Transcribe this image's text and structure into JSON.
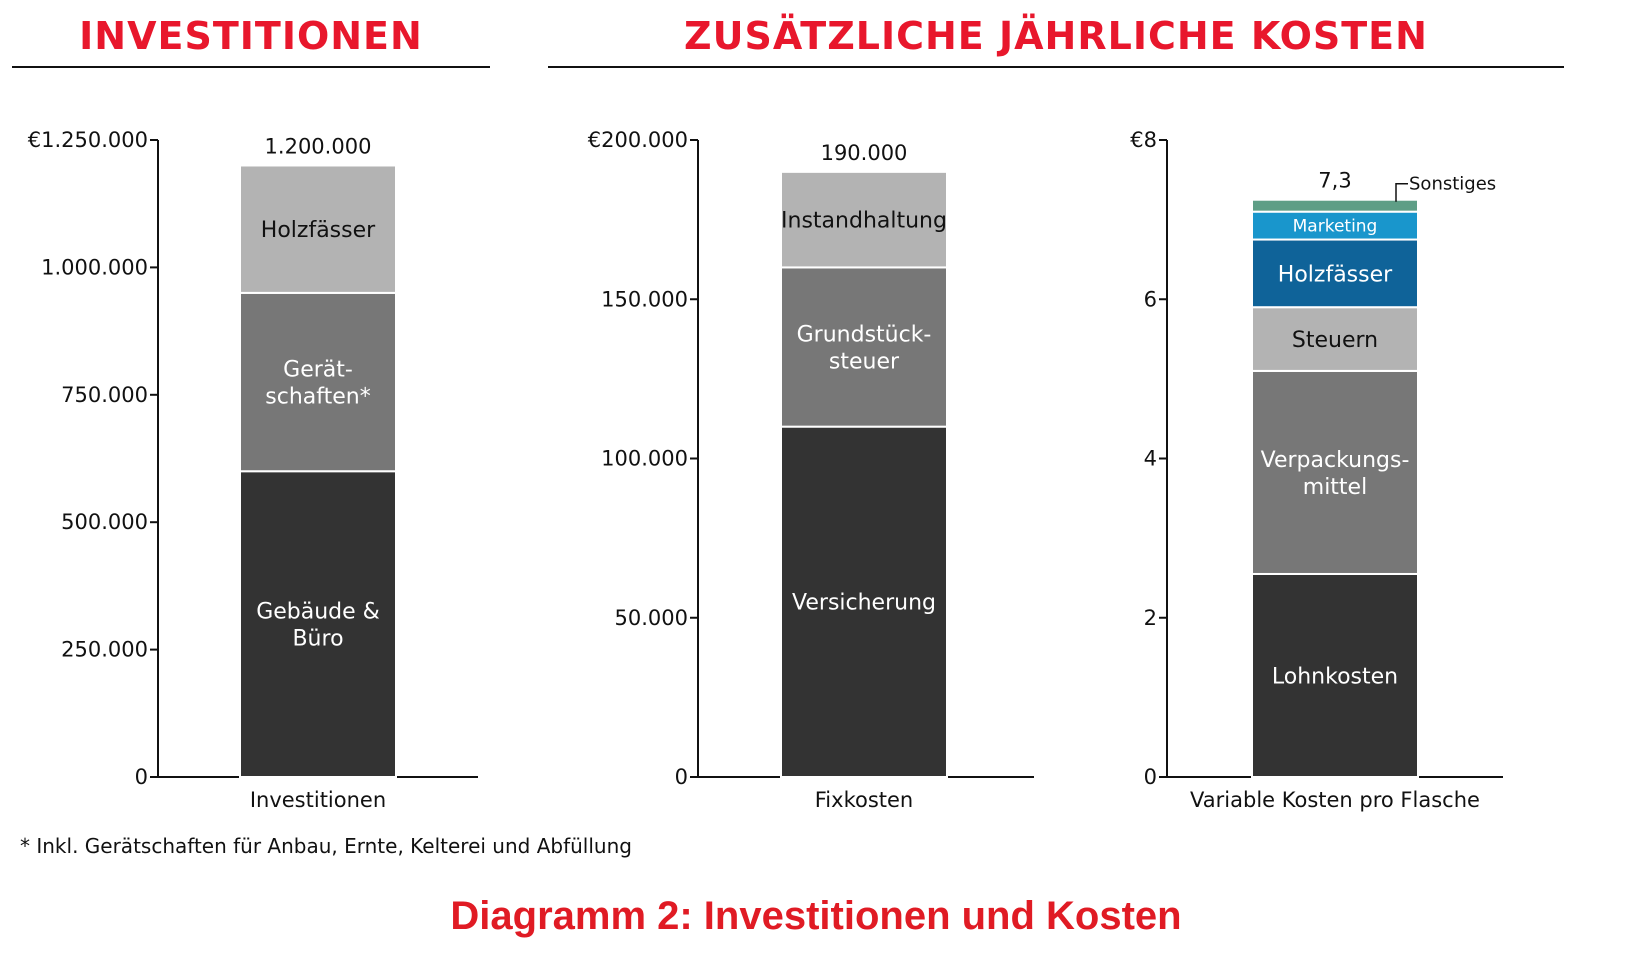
{
  "headings": {
    "left": "INVESTITIONEN",
    "right": "ZUSÄTZLICHE JÄHRLICHE KOSTEN"
  },
  "footnote": "* Inkl. Gerätschaften für Anbau, Ernte, Kelterei und Abfüllung",
  "caption": "Diagramm 2: Investitionen und Kosten",
  "colors": {
    "heading": "#e8172c",
    "caption": "#e01b24",
    "dark": "#333333",
    "mid": "#777777",
    "light": "#b3b3b3",
    "blue_dark": "#0f6399",
    "blue_light": "#1996cc",
    "green": "#5e9e86"
  },
  "chart_data": [
    {
      "type": "bar",
      "stacked": true,
      "categories": [
        "Investitionen"
      ],
      "ylim": [
        0,
        1250000
      ],
      "ticks": [
        {
          "value": 0,
          "label": "0"
        },
        {
          "value": 250000,
          "label": "250.000"
        },
        {
          "value": 500000,
          "label": "500.000"
        },
        {
          "value": 750000,
          "label": "750.000"
        },
        {
          "value": 1000000,
          "label": "1.000.000"
        },
        {
          "value": 1250000,
          "label": "€1.250.000"
        }
      ],
      "total_label": "1.200.000",
      "series": [
        {
          "name": "Gebäude & Büro",
          "label_lines": [
            "Gebäude &",
            "Büro"
          ],
          "value": 600000,
          "color": "#333333",
          "text_color": "#ffffff"
        },
        {
          "name": "Gerätschaften*",
          "label_lines": [
            "Gerät-",
            "schaften*"
          ],
          "value": 350000,
          "color": "#777777",
          "text_color": "#ffffff"
        },
        {
          "name": "Holzfässer",
          "label_lines": [
            "Holzfässer"
          ],
          "value": 250000,
          "color": "#b3b3b3",
          "text_color": "#111111"
        }
      ]
    },
    {
      "type": "bar",
      "stacked": true,
      "categories": [
        "Fixkosten"
      ],
      "ylim": [
        0,
        200000
      ],
      "ticks": [
        {
          "value": 0,
          "label": "0"
        },
        {
          "value": 50000,
          "label": "50.000"
        },
        {
          "value": 100000,
          "label": "100.000"
        },
        {
          "value": 150000,
          "label": "150.000"
        },
        {
          "value": 200000,
          "label": "€200.000"
        }
      ],
      "total_label": "190.000",
      "series": [
        {
          "name": "Versicherung",
          "label_lines": [
            "Versicherung"
          ],
          "value": 110000,
          "color": "#333333",
          "text_color": "#ffffff"
        },
        {
          "name": "Grundstücksteuer",
          "label_lines": [
            "Grundstück-",
            "steuer"
          ],
          "value": 50000,
          "color": "#777777",
          "text_color": "#ffffff"
        },
        {
          "name": "Instandhaltung",
          "label_lines": [
            "Instandhaltung"
          ],
          "value": 30000,
          "color": "#b3b3b3",
          "text_color": "#111111"
        }
      ]
    },
    {
      "type": "bar",
      "stacked": true,
      "categories": [
        "Variable Kosten pro Flasche"
      ],
      "ylim": [
        0,
        8
      ],
      "ticks": [
        {
          "value": 0,
          "label": "0"
        },
        {
          "value": 2,
          "label": "2"
        },
        {
          "value": 4,
          "label": "4"
        },
        {
          "value": 6,
          "label": "6"
        },
        {
          "value": 8,
          "label": "€8"
        }
      ],
      "total_label": "7,3",
      "series": [
        {
          "name": "Lohnkosten",
          "label_lines": [
            "Lohnkosten"
          ],
          "value": 2.55,
          "color": "#333333",
          "text_color": "#ffffff"
        },
        {
          "name": "Verpackungsmittel",
          "label_lines": [
            "Verpackungs-",
            "mittel"
          ],
          "value": 2.55,
          "color": "#777777",
          "text_color": "#ffffff"
        },
        {
          "name": "Steuern",
          "label_lines": [
            "Steuern"
          ],
          "value": 0.8,
          "color": "#b3b3b3",
          "text_color": "#111111"
        },
        {
          "name": "Holzfässer",
          "label_lines": [
            "Holzfässer"
          ],
          "value": 0.85,
          "color": "#0f6399",
          "text_color": "#ffffff"
        },
        {
          "name": "Marketing",
          "label_lines": [
            "Marketing"
          ],
          "value": 0.35,
          "color": "#1996cc",
          "text_color": "#ffffff",
          "small": true
        },
        {
          "name": "Sonstiges",
          "label_lines": [
            "Sonstiges"
          ],
          "value": 0.15,
          "color": "#5e9e86",
          "text_color": "#111111",
          "callout": true
        }
      ]
    }
  ]
}
